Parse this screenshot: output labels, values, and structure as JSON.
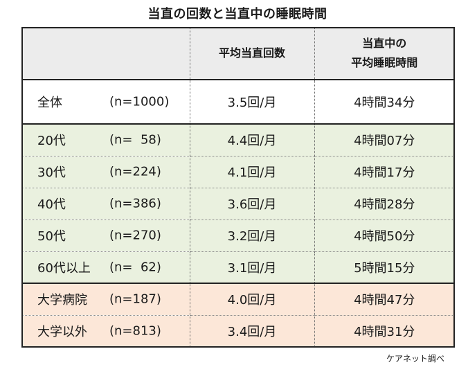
{
  "title": "当直の回数と当直中の睡眠時間",
  "header": {
    "col2": "平均当直回数",
    "col3_line1": "当直中の",
    "col3_line2": "平均睡眠時間"
  },
  "rows": [
    {
      "group": "total",
      "name": "全体",
      "n": "(n=1000)",
      "count": "3.5回/月",
      "sleep": "4時間34分"
    },
    {
      "group": "age",
      "name": "20代",
      "n": "(n=  58)",
      "count": "4.4回/月",
      "sleep": "4時間07分"
    },
    {
      "group": "age",
      "name": "30代",
      "n": "(n=224)",
      "count": "4.1回/月",
      "sleep": "4時間17分"
    },
    {
      "group": "age",
      "name": "40代",
      "n": "(n=386)",
      "count": "3.6回/月",
      "sleep": "4時間28分"
    },
    {
      "group": "age",
      "name": "50代",
      "n": "(n=270)",
      "count": "3.2回/月",
      "sleep": "4時間50分"
    },
    {
      "group": "age",
      "name": "60代以上",
      "n": "(n=  62)",
      "count": "3.1回/月",
      "sleep": "5時間15分"
    },
    {
      "group": "hosp",
      "name": "大学病院",
      "n": "(n=187)",
      "count": "4.0回/月",
      "sleep": "4時間47分"
    },
    {
      "group": "hosp",
      "name": "大学以外",
      "n": "(n=813)",
      "count": "3.4回/月",
      "sleep": "4時間31分"
    }
  ],
  "source": "ケアネット調べ",
  "colors": {
    "header_bg": "#ececec",
    "age_bg": "#eaf1df",
    "hospital_bg": "#fce7d8"
  }
}
